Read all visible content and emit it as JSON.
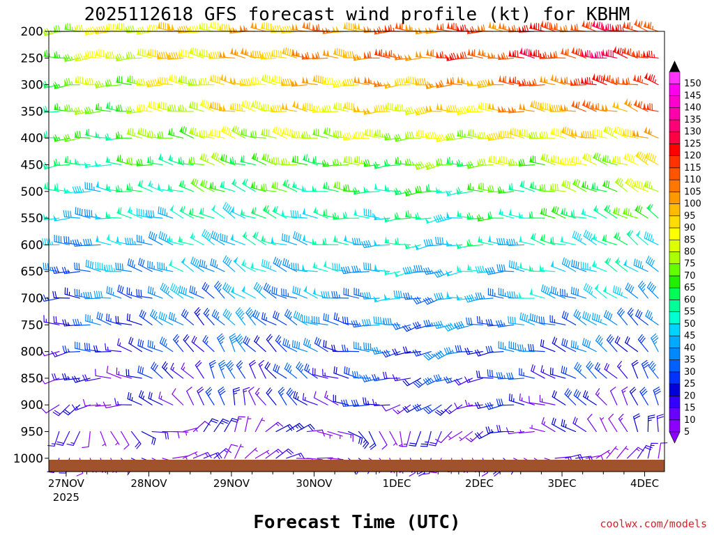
{
  "chart_data": {
    "type": "wind-barb-profile",
    "title": "2025112618 GFS forecast wind profile (kt) for KBHM",
    "xlabel": "Forecast Time (UTC)",
    "credit": "coolwx.com/models",
    "pressure_levels": [
      "200",
      "250",
      "300",
      "350",
      "400",
      "450",
      "500",
      "550",
      "600",
      "650",
      "700",
      "750",
      "800",
      "850",
      "900",
      "950",
      "1000"
    ],
    "date_ticks": [
      {
        "day": 0,
        "label": "27NOV",
        "year": "2025"
      },
      {
        "day": 1,
        "label": "28NOV"
      },
      {
        "day": 2,
        "label": "29NOV"
      },
      {
        "day": 3,
        "label": "30NOV"
      },
      {
        "day": 4,
        "label": "1DEC"
      },
      {
        "day": 5,
        "label": "2DEC"
      },
      {
        "day": 6,
        "label": "3DEC"
      },
      {
        "day": 7,
        "label": "4DEC"
      }
    ],
    "time_range_days": [
      -0.21,
      7.24
    ],
    "time_step_hours": 3,
    "speed_scale": {
      "unit": "kt",
      "levels": [
        "5",
        "10",
        "15",
        "20",
        "25",
        "30",
        "35",
        "40",
        "45",
        "50",
        "55",
        "60",
        "65",
        "70",
        "75",
        "80",
        "85",
        "90",
        "95",
        "100",
        "105",
        "110",
        "115",
        "120",
        "125",
        "130",
        "135",
        "140",
        "145",
        "150"
      ],
      "colors": [
        "#8b00ff",
        "#6a00ff",
        "#3300ff",
        "#0000d8",
        "#0033ff",
        "#0060ff",
        "#0088ff",
        "#00aaff",
        "#00d4ff",
        "#00ffd0",
        "#00ff99",
        "#00ff55",
        "#22ee00",
        "#66ff00",
        "#aaff00",
        "#ddff00",
        "#ffff00",
        "#ffdd00",
        "#ffbb00",
        "#ff9900",
        "#ff7700",
        "#ff5500",
        "#ff3300",
        "#ff0000",
        "#ff0044",
        "#ff0077",
        "#ff00aa",
        "#ff00cc",
        "#ff00ee",
        "#ff33ff"
      ]
    },
    "profiles": [
      {
        "level": "200",
        "dir": [
          265,
          275,
          270,
          285
        ],
        "spd": [
          80,
          95,
          110,
          120
        ]
      },
      {
        "level": "250",
        "dir": [
          265,
          280,
          270,
          285
        ],
        "spd": [
          75,
          95,
          110,
          125
        ]
      },
      {
        "level": "300",
        "dir": [
          265,
          280,
          265,
          285
        ],
        "spd": [
          70,
          90,
          100,
          120
        ]
      },
      {
        "level": "350",
        "dir": [
          265,
          285,
          265,
          290
        ],
        "spd": [
          65,
          90,
          90,
          110
        ]
      },
      {
        "level": "400",
        "dir": [
          265,
          290,
          265,
          290
        ],
        "spd": [
          60,
          80,
          80,
          95
        ]
      },
      {
        "level": "450",
        "dir": [
          265,
          290,
          260,
          295
        ],
        "spd": [
          55,
          70,
          70,
          85
        ]
      },
      {
        "level": "500",
        "dir": [
          270,
          295,
          260,
          300
        ],
        "spd": [
          50,
          65,
          60,
          75
        ]
      },
      {
        "level": "550",
        "dir": [
          270,
          300,
          260,
          300
        ],
        "spd": [
          45,
          55,
          55,
          65
        ]
      },
      {
        "level": "600",
        "dir": [
          270,
          300,
          260,
          305
        ],
        "spd": [
          40,
          50,
          50,
          55
        ]
      },
      {
        "level": "650",
        "dir": [
          270,
          305,
          255,
          305
        ],
        "spd": [
          35,
          45,
          45,
          50
        ]
      },
      {
        "level": "700",
        "dir": [
          270,
          310,
          255,
          310
        ],
        "spd": [
          30,
          40,
          40,
          45
        ]
      },
      {
        "level": "750",
        "dir": [
          270,
          320,
          250,
          315
        ],
        "spd": [
          25,
          35,
          35,
          35
        ]
      },
      {
        "level": "800",
        "dir": [
          260,
          330,
          245,
          320
        ],
        "spd": [
          20,
          30,
          30,
          30
        ]
      },
      {
        "level": "850",
        "dir": [
          250,
          340,
          240,
          330
        ],
        "spd": [
          15,
          25,
          25,
          25
        ]
      },
      {
        "level": "900",
        "dir": [
          230,
          350,
          230,
          340
        ],
        "spd": [
          12,
          20,
          20,
          20
        ]
      },
      {
        "level": "950",
        "dir": [
          210,
          10,
          210,
          350
        ],
        "spd": [
          10,
          15,
          15,
          15
        ]
      },
      {
        "level": "1000",
        "dir": [
          190,
          30,
          190,
          20
        ],
        "spd": [
          8,
          10,
          10,
          10
        ]
      }
    ]
  }
}
